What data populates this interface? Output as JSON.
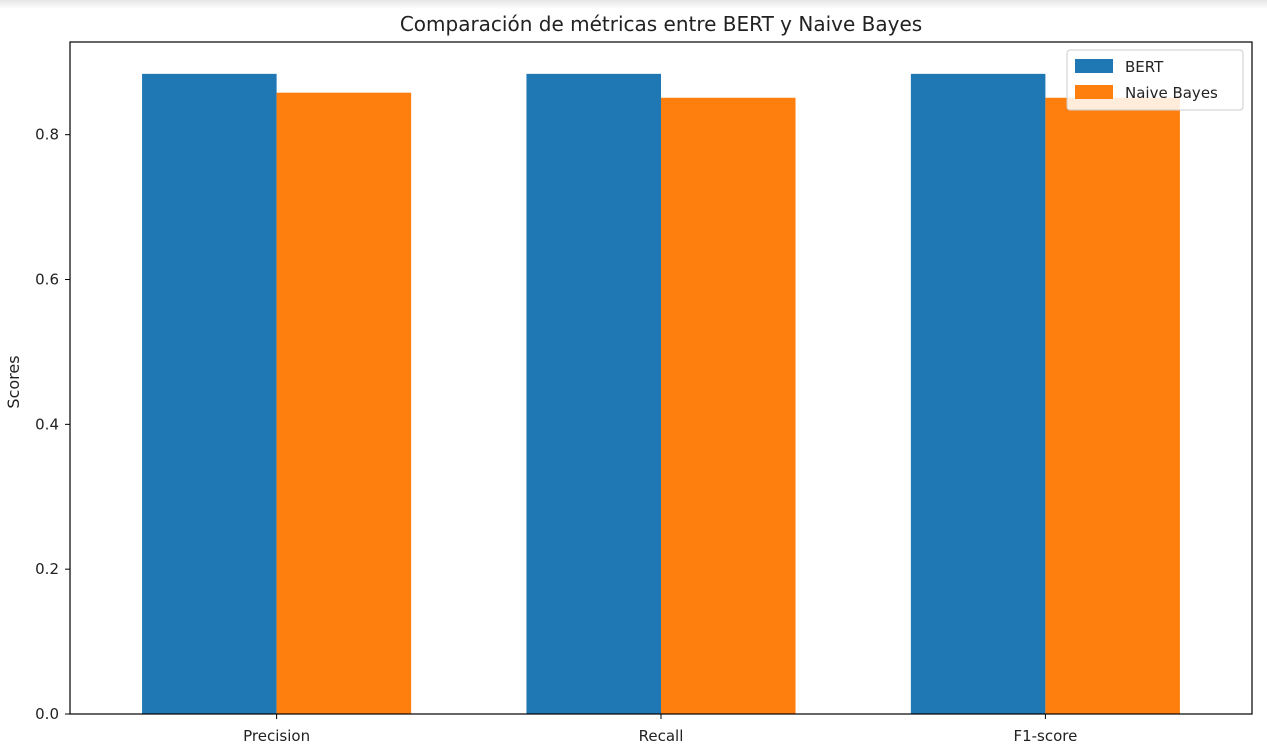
{
  "chart_data": {
    "type": "bar",
    "title": "Comparación de métricas entre BERT y Naive Bayes",
    "xlabel": "",
    "ylabel": "Scores",
    "categories": [
      "Precision",
      "Recall",
      "F1-score"
    ],
    "series": [
      {
        "name": "BERT",
        "values": [
          0.884,
          0.884,
          0.884
        ],
        "color": "#1f77b4"
      },
      {
        "name": "Naive Bayes",
        "values": [
          0.858,
          0.851,
          0.851
        ],
        "color": "#ff7f0e"
      }
    ],
    "ylim": [
      0,
      0.928
    ],
    "yticks": [
      "0.0",
      "0.2",
      "0.4",
      "0.6",
      "0.8"
    ],
    "grid": false,
    "legend_position": "top-right"
  }
}
